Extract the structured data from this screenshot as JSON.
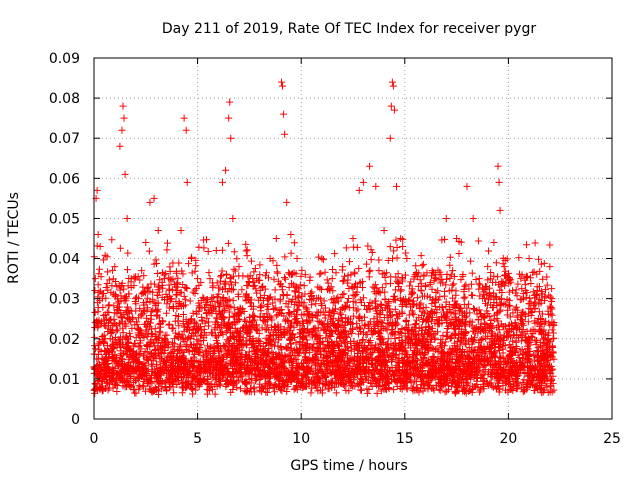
{
  "chart_data": {
    "type": "scatter",
    "title": "Day 211 of 2019, Rate Of TEC Index for receiver pygr",
    "xlabel": "GPS time / hours",
    "ylabel": "ROTI / TECUs",
    "xlim": [
      0,
      25
    ],
    "ylim": [
      0,
      0.09
    ],
    "x_ticks": [
      "0",
      "5",
      "10",
      "15",
      "20",
      "25"
    ],
    "y_ticks": [
      "0",
      "0.01",
      "0.02",
      "0.03",
      "0.04",
      "0.05",
      "0.06",
      "0.07",
      "0.08",
      "0.09"
    ],
    "grid": true,
    "legend": "none",
    "marker": "plus",
    "color": "#ff0000",
    "series": [
      {
        "points": [
          [
            0.0,
            0.013
          ],
          [
            0.1,
            0.055
          ],
          [
            0.15,
            0.057
          ],
          [
            0.2,
            0.046
          ],
          [
            0.3,
            0.043
          ],
          [
            0.4,
            0.03
          ],
          [
            0.55,
            0.026
          ],
          [
            0.7,
            0.024
          ],
          [
            0.9,
            0.022
          ],
          [
            1.1,
            0.033
          ],
          [
            1.25,
            0.068
          ],
          [
            1.35,
            0.072
          ],
          [
            1.4,
            0.078
          ],
          [
            1.45,
            0.075
          ],
          [
            1.5,
            0.061
          ],
          [
            1.6,
            0.05
          ],
          [
            1.8,
            0.035
          ],
          [
            2.0,
            0.03
          ],
          [
            2.3,
            0.037
          ],
          [
            2.5,
            0.044
          ],
          [
            2.7,
            0.054
          ],
          [
            2.9,
            0.055
          ],
          [
            3.1,
            0.047
          ],
          [
            3.4,
            0.035
          ],
          [
            3.7,
            0.03
          ],
          [
            4.0,
            0.032
          ],
          [
            4.2,
            0.047
          ],
          [
            4.35,
            0.075
          ],
          [
            4.45,
            0.072
          ],
          [
            4.5,
            0.059
          ],
          [
            4.7,
            0.04
          ],
          [
            5.0,
            0.035
          ],
          [
            5.3,
            0.03
          ],
          [
            5.6,
            0.035
          ],
          [
            5.9,
            0.042
          ],
          [
            6.2,
            0.059
          ],
          [
            6.35,
            0.062
          ],
          [
            6.5,
            0.075
          ],
          [
            6.55,
            0.079
          ],
          [
            6.6,
            0.07
          ],
          [
            6.7,
            0.05
          ],
          [
            7.0,
            0.038
          ],
          [
            7.5,
            0.034
          ],
          [
            8.0,
            0.036
          ],
          [
            8.5,
            0.04
          ],
          [
            8.8,
            0.045
          ],
          [
            9.05,
            0.084
          ],
          [
            9.1,
            0.083
          ],
          [
            9.15,
            0.076
          ],
          [
            9.2,
            0.071
          ],
          [
            9.3,
            0.054
          ],
          [
            9.5,
            0.046
          ],
          [
            9.8,
            0.04
          ],
          [
            10.2,
            0.036
          ],
          [
            10.6,
            0.03
          ],
          [
            11.0,
            0.04
          ],
          [
            11.5,
            0.035
          ],
          [
            12.0,
            0.038
          ],
          [
            12.5,
            0.045
          ],
          [
            12.8,
            0.057
          ],
          [
            13.0,
            0.059
          ],
          [
            13.3,
            0.063
          ],
          [
            13.6,
            0.058
          ],
          [
            14.0,
            0.047
          ],
          [
            14.3,
            0.07
          ],
          [
            14.35,
            0.078
          ],
          [
            14.4,
            0.084
          ],
          [
            14.45,
            0.083
          ],
          [
            14.5,
            0.077
          ],
          [
            14.6,
            0.058
          ],
          [
            14.8,
            0.045
          ],
          [
            15.1,
            0.04
          ],
          [
            15.5,
            0.036
          ],
          [
            16.0,
            0.033
          ],
          [
            16.5,
            0.035
          ],
          [
            17.0,
            0.05
          ],
          [
            17.5,
            0.045
          ],
          [
            18.0,
            0.058
          ],
          [
            18.3,
            0.05
          ],
          [
            18.6,
            0.035
          ],
          [
            19.0,
            0.038
          ],
          [
            19.3,
            0.044
          ],
          [
            19.5,
            0.063
          ],
          [
            19.55,
            0.059
          ],
          [
            19.6,
            0.052
          ],
          [
            19.8,
            0.038
          ],
          [
            20.2,
            0.032
          ],
          [
            20.6,
            0.035
          ],
          [
            21.0,
            0.04
          ],
          [
            21.5,
            0.033
          ],
          [
            22.0,
            0.038
          ],
          [
            22.1,
            0.03
          ]
        ]
      }
    ]
  }
}
